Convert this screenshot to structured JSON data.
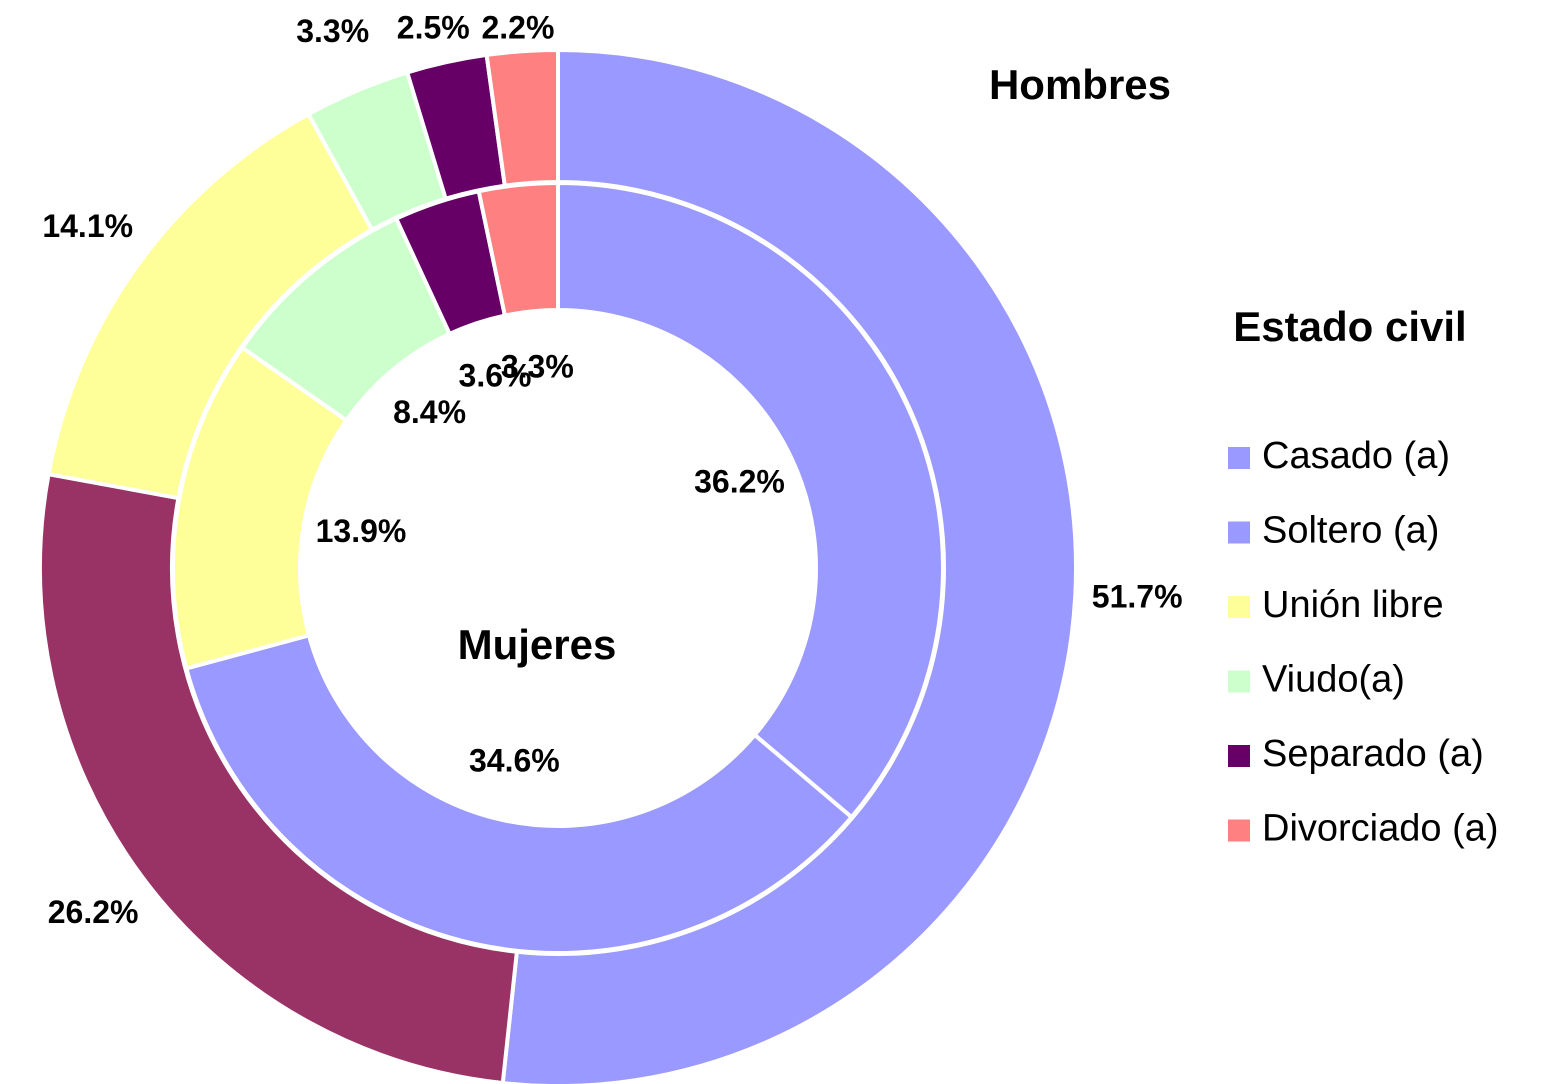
{
  "chart_data": {
    "type": "doughnut",
    "categories": [
      "Casado (a)",
      "Soltero (a)",
      "Unión libre",
      "Viudo(a)",
      "Separado (a)",
      "Divorciado (a)"
    ],
    "series": [
      {
        "name": "Hombres",
        "values": [
          51.7,
          26.2,
          14.1,
          3.3,
          2.5,
          2.2
        ],
        "value_labels": [
          "51.7%",
          "26.2%",
          "14.1%",
          "3.3%",
          "2.5%",
          "2.2%"
        ],
        "colors": [
          "#9999ff",
          "#993366",
          "#ffff99",
          "#ccffcc",
          "#660066",
          "#ff8080"
        ]
      },
      {
        "name": "Mujeres",
        "values": [
          36.2,
          34.6,
          13.9,
          8.4,
          3.6,
          3.3
        ],
        "value_labels": [
          "36.2%",
          "34.6%",
          "13.9%",
          "8.4%",
          "3.6%",
          "3.3%"
        ],
        "colors": [
          "#9999ff",
          "#9999ff",
          "#ffff99",
          "#ccffcc",
          "#660066",
          "#ff8080"
        ]
      }
    ],
    "legend_title": "Estado civil",
    "legend": "right"
  }
}
